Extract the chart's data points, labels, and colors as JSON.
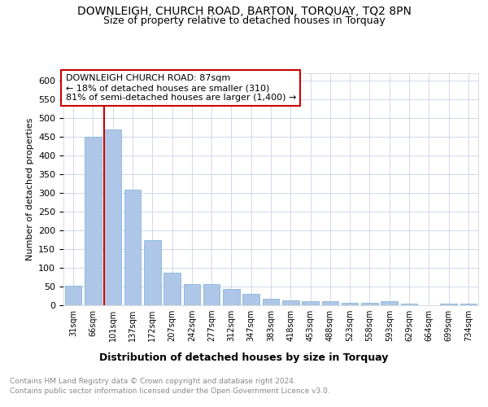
{
  "title": "DOWNLEIGH, CHURCH ROAD, BARTON, TORQUAY, TQ2 8PN",
  "subtitle": "Size of property relative to detached houses in Torquay",
  "xlabel": "Distribution of detached houses by size in Torquay",
  "ylabel": "Number of detached properties",
  "categories": [
    "31sqm",
    "66sqm",
    "101sqm",
    "137sqm",
    "172sqm",
    "207sqm",
    "242sqm",
    "277sqm",
    "312sqm",
    "347sqm",
    "383sqm",
    "418sqm",
    "453sqm",
    "488sqm",
    "523sqm",
    "558sqm",
    "593sqm",
    "629sqm",
    "664sqm",
    "699sqm",
    "734sqm"
  ],
  "values": [
    53,
    450,
    470,
    310,
    175,
    88,
    57,
    57,
    44,
    31,
    17,
    14,
    10,
    10,
    6,
    7,
    10,
    4,
    1,
    4,
    4
  ],
  "bar_color": "#aec6e8",
  "bar_edge_color": "#7aafd4",
  "ylim": [
    0,
    620
  ],
  "yticks": [
    0,
    50,
    100,
    150,
    200,
    250,
    300,
    350,
    400,
    450,
    500,
    550,
    600
  ],
  "vline_x_index": 2,
  "vline_color": "#cc0000",
  "annotation_lines": [
    "DOWNLEIGH CHURCH ROAD: 87sqm",
    "← 18% of detached houses are smaller (310)",
    "81% of semi-detached houses are larger (1,400) →"
  ],
  "annotation_box_color": "#ffffff",
  "annotation_box_edgecolor": "#cc0000",
  "footer_line1": "Contains HM Land Registry data © Crown copyright and database right 2024.",
  "footer_line2": "Contains public sector information licensed under the Open Government Licence v3.0.",
  "background_color": "#ffffff",
  "grid_color": "#d0d8e8",
  "title_fontsize": 10,
  "subtitle_fontsize": 9,
  "xlabel_fontsize": 9,
  "ylabel_fontsize": 8,
  "tick_fontsize": 8,
  "annotation_fontsize": 8,
  "footer_fontsize": 6.5
}
